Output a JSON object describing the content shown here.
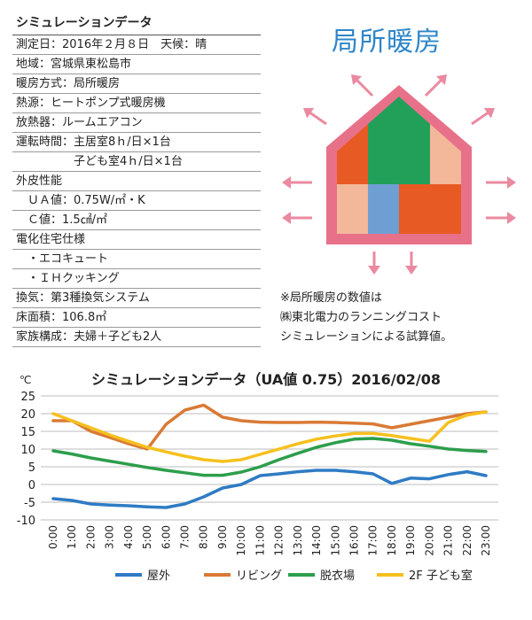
{
  "spec": {
    "title": "シミュレーションデータ",
    "rows": [
      "測定日：2016年２月８日　天候：晴",
      "地域：宮城県東松島市",
      "暖房方式：局所暖房",
      "熱源：ヒートポンプ式暖房機",
      "放熱器：ルームエアコン",
      "運転時間：主居室8ｈ/日×1台",
      "　　　　　子ども室4ｈ/日×1台",
      "外皮性能",
      "　ＵＡ値：0.75W/㎡・K",
      "　Ｃ値：1.5㎠/㎡",
      "電化住宅仕様",
      "　・エコキュート",
      "　・ＩＨクッキング",
      "換気：第3種換気システム",
      "床面積：106.8㎡",
      "家族構成：夫婦＋子ども2人"
    ]
  },
  "hero": {
    "title": "局所暖房"
  },
  "note": {
    "lines": [
      "※局所暖房の数値は",
      "㈱東北電力のランニングコスト",
      "シミュレーションによる試算値。"
    ]
  },
  "colors": {
    "house_frame": "#e8718a",
    "arrow": "#ea8aa0",
    "orange": "#e85a24",
    "green": "#22a05a",
    "peach": "#f3b89a",
    "blue": "#6f9fd2",
    "title_blue": "#2e86c9"
  },
  "chart_data": {
    "type": "line",
    "title": "シミュレーションデータ（UA値 0.75）2016/02/08",
    "ylabel": "℃",
    "ylim": [
      -10,
      25
    ],
    "yticks": [
      25,
      20,
      15,
      10,
      5,
      0,
      -5,
      -10
    ],
    "grid": true,
    "legend_position": "bottom",
    "x": [
      "0:00",
      "1:00",
      "2:00",
      "3:00",
      "4:00",
      "5:00",
      "6:00",
      "7:00",
      "8:00",
      "9:00",
      "10:00",
      "11:00",
      "12:00",
      "13:00",
      "14:00",
      "15:00",
      "16:00",
      "17:00",
      "18:00",
      "19:00",
      "20:00",
      "21:00",
      "22:00",
      "23:00"
    ],
    "series": [
      {
        "name": "屋外",
        "color": "#2f7bc4",
        "values": [
          -4,
          -4.5,
          -5.5,
          -5.8,
          -6,
          -6.3,
          -6.5,
          -5.5,
          -3.5,
          -1,
          0,
          2.5,
          3,
          3.6,
          4,
          4,
          3.6,
          3,
          0.3,
          1.8,
          1.6,
          2.8,
          3.6,
          2.5
        ]
      },
      {
        "name": "リビング",
        "color": "#d97a35",
        "values": [
          18,
          18,
          15,
          13.3,
          11.5,
          10,
          17,
          21,
          22.4,
          19,
          18,
          17.6,
          17.5,
          17.5,
          17.6,
          17.5,
          17.3,
          17.1,
          16,
          17,
          18,
          19,
          20,
          20.5
        ]
      },
      {
        "name": "脱衣場",
        "color": "#2d9e4c",
        "values": [
          9.5,
          8.6,
          7.5,
          6.6,
          5.7,
          4.8,
          4,
          3.3,
          2.6,
          2.6,
          3.5,
          5,
          7,
          8.8,
          10.5,
          11.8,
          12.8,
          13,
          12.5,
          11.5,
          10.8,
          10,
          9.6,
          9.3
        ]
      },
      {
        "name": "2F 子ども室",
        "color": "#f6c01e",
        "values": [
          20,
          18,
          16,
          14,
          12.2,
          10.5,
          9.2,
          8,
          7,
          6.5,
          7,
          8.5,
          10,
          11.5,
          12.8,
          13.7,
          14.4,
          14.4,
          13.8,
          13,
          12.2,
          17.5,
          19.6,
          20.5
        ]
      }
    ]
  }
}
